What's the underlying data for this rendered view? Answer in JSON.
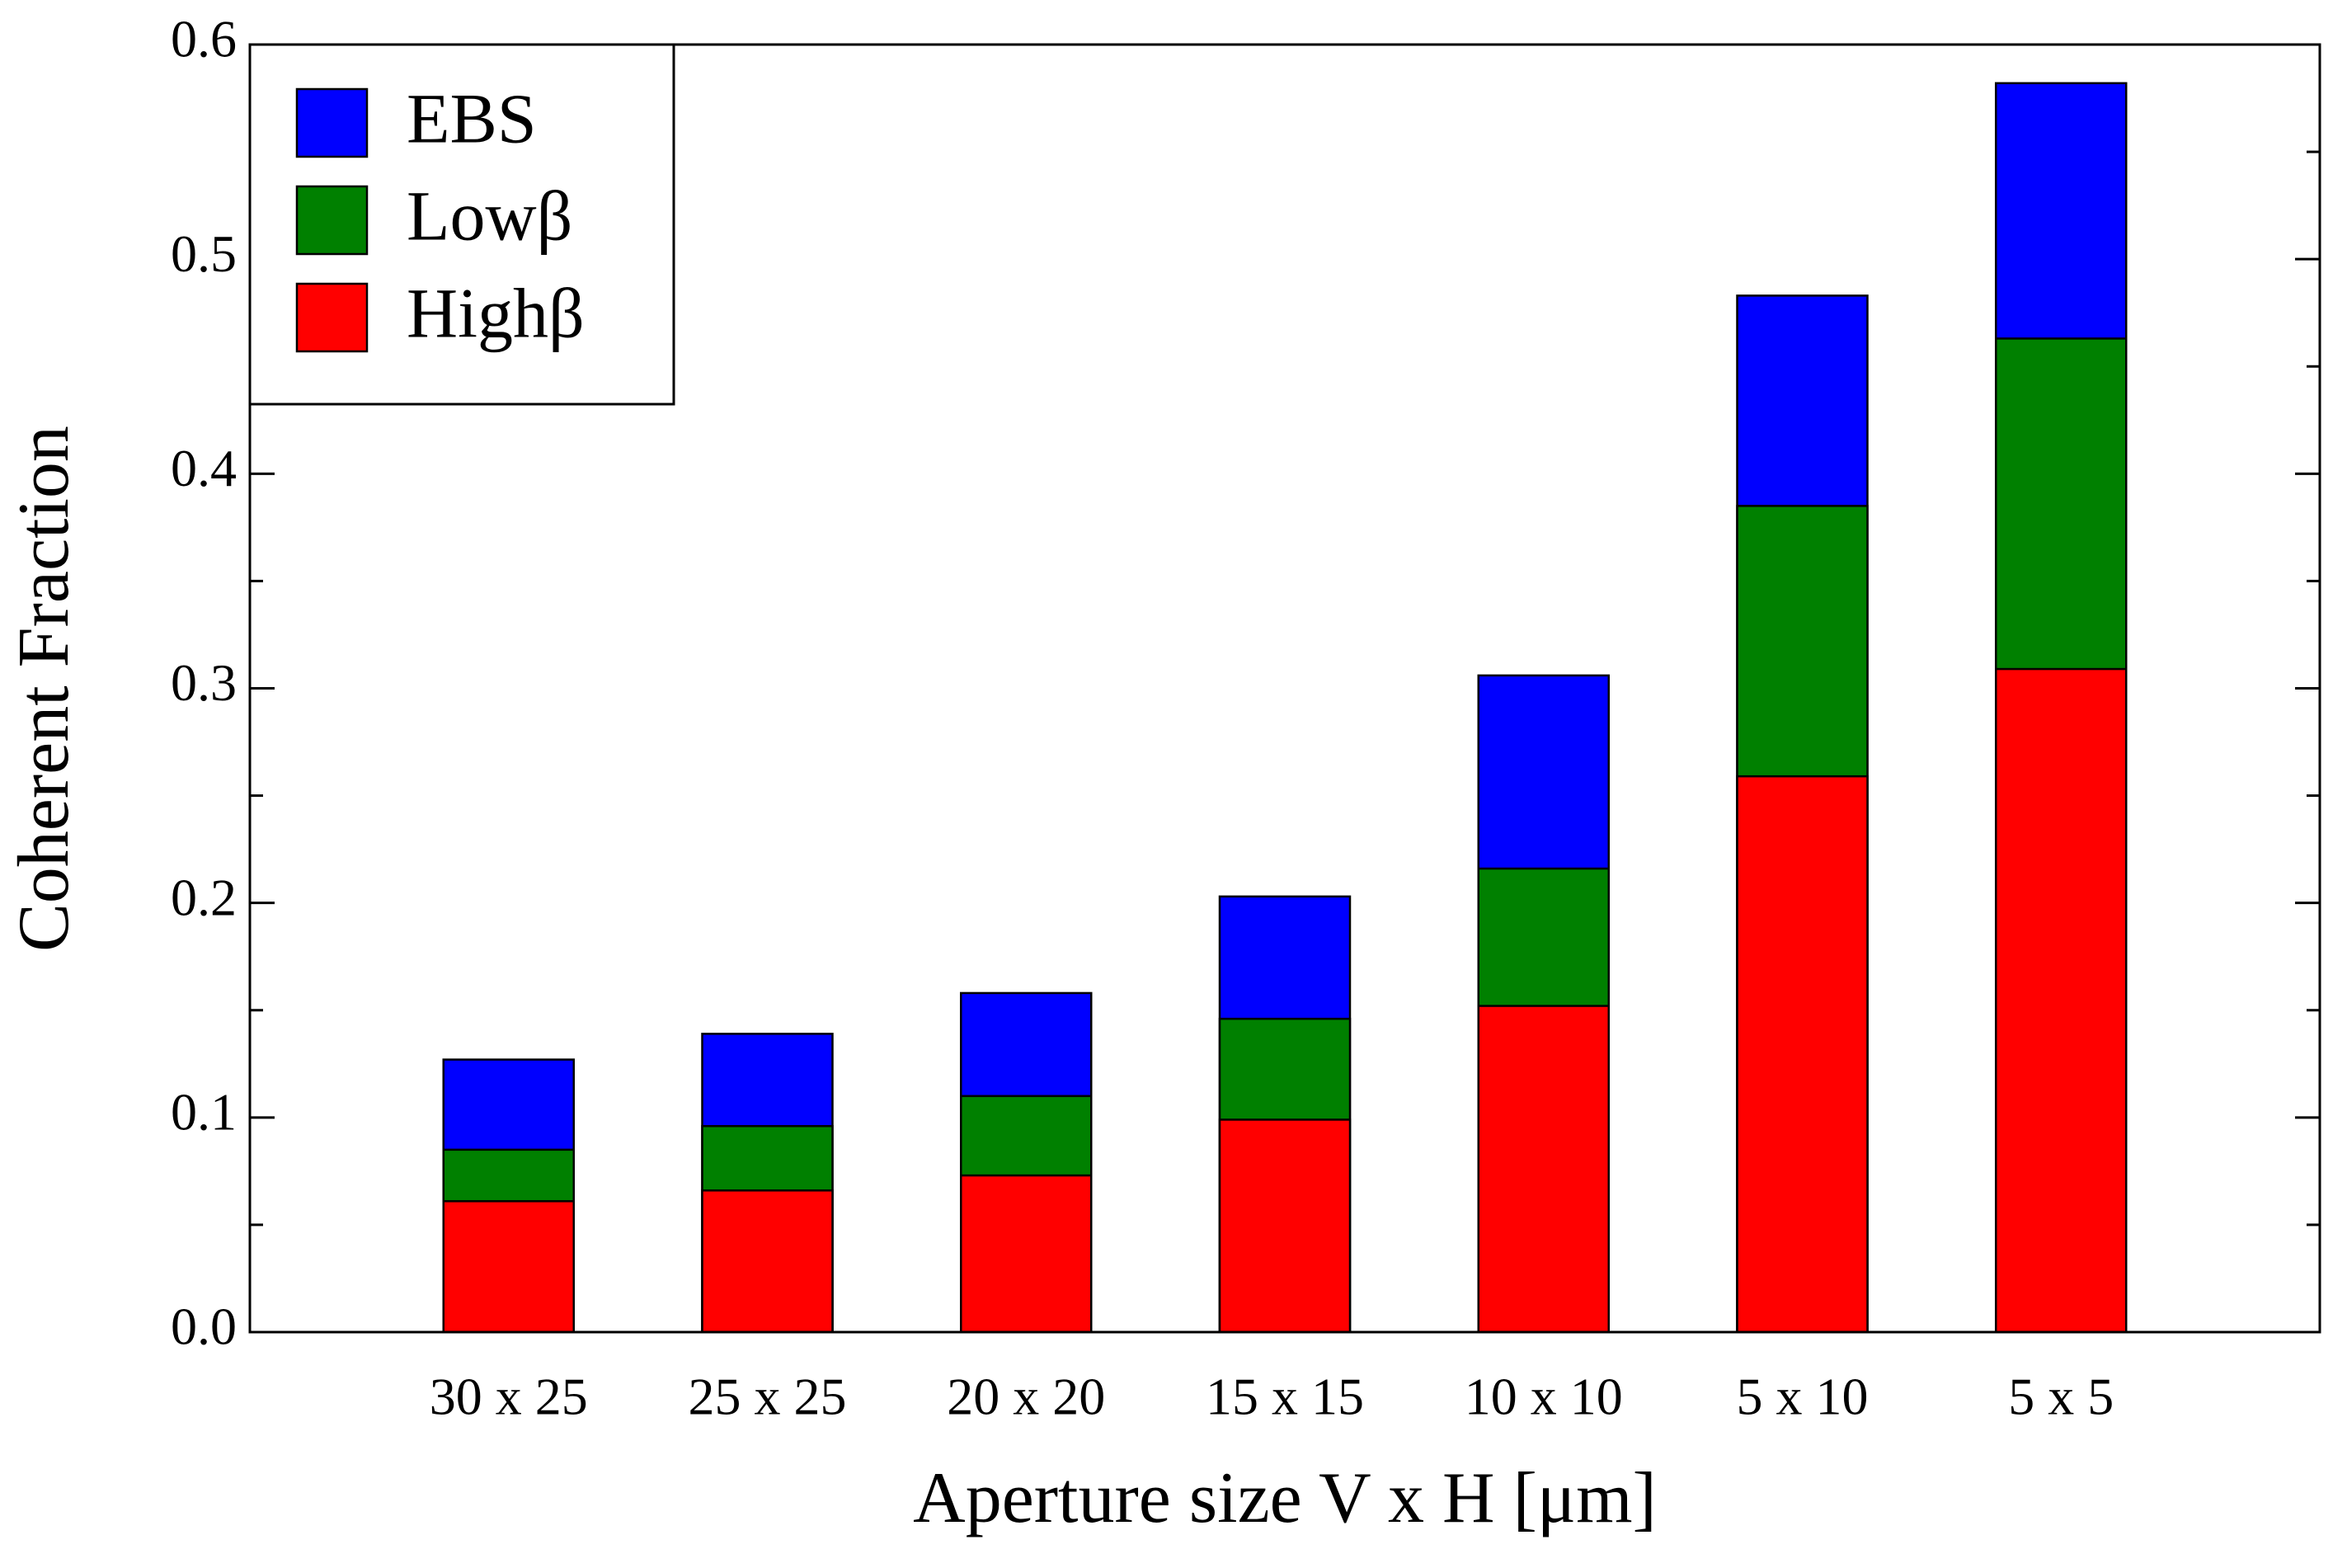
{
  "chart_data": {
    "type": "bar",
    "x_label": "Aperture size V x H [μm]",
    "y_label": "Coherent Fraction",
    "categories": [
      "30 x 25",
      "25 x 25",
      "20 x 20",
      "15 x 15",
      "10 x 10",
      "5 x 10",
      "5 x 5"
    ],
    "series": [
      {
        "name": "EBS",
        "color": "#0000ff",
        "values": [
          0.127,
          0.139,
          0.158,
          0.203,
          0.306,
          0.483,
          0.582
        ]
      },
      {
        "name": "Lowβ",
        "color": "#008000",
        "values": [
          0.085,
          0.096,
          0.11,
          0.146,
          0.216,
          0.385,
          0.463
        ]
      },
      {
        "name": "Highβ",
        "color": "#ff0000",
        "values": [
          0.061,
          0.066,
          0.073,
          0.099,
          0.152,
          0.259,
          0.309
        ]
      }
    ],
    "ylim": [
      0,
      0.6
    ],
    "yticks": [
      {
        "value": 0,
        "label": "0.0"
      },
      0.1,
      0.2,
      0.3,
      0.4,
      0.5,
      0.6
    ],
    "yminorticks": [
      0.05,
      0.15,
      0.25,
      0.35,
      0.45,
      0.55
    ],
    "legend": "upper left"
  }
}
